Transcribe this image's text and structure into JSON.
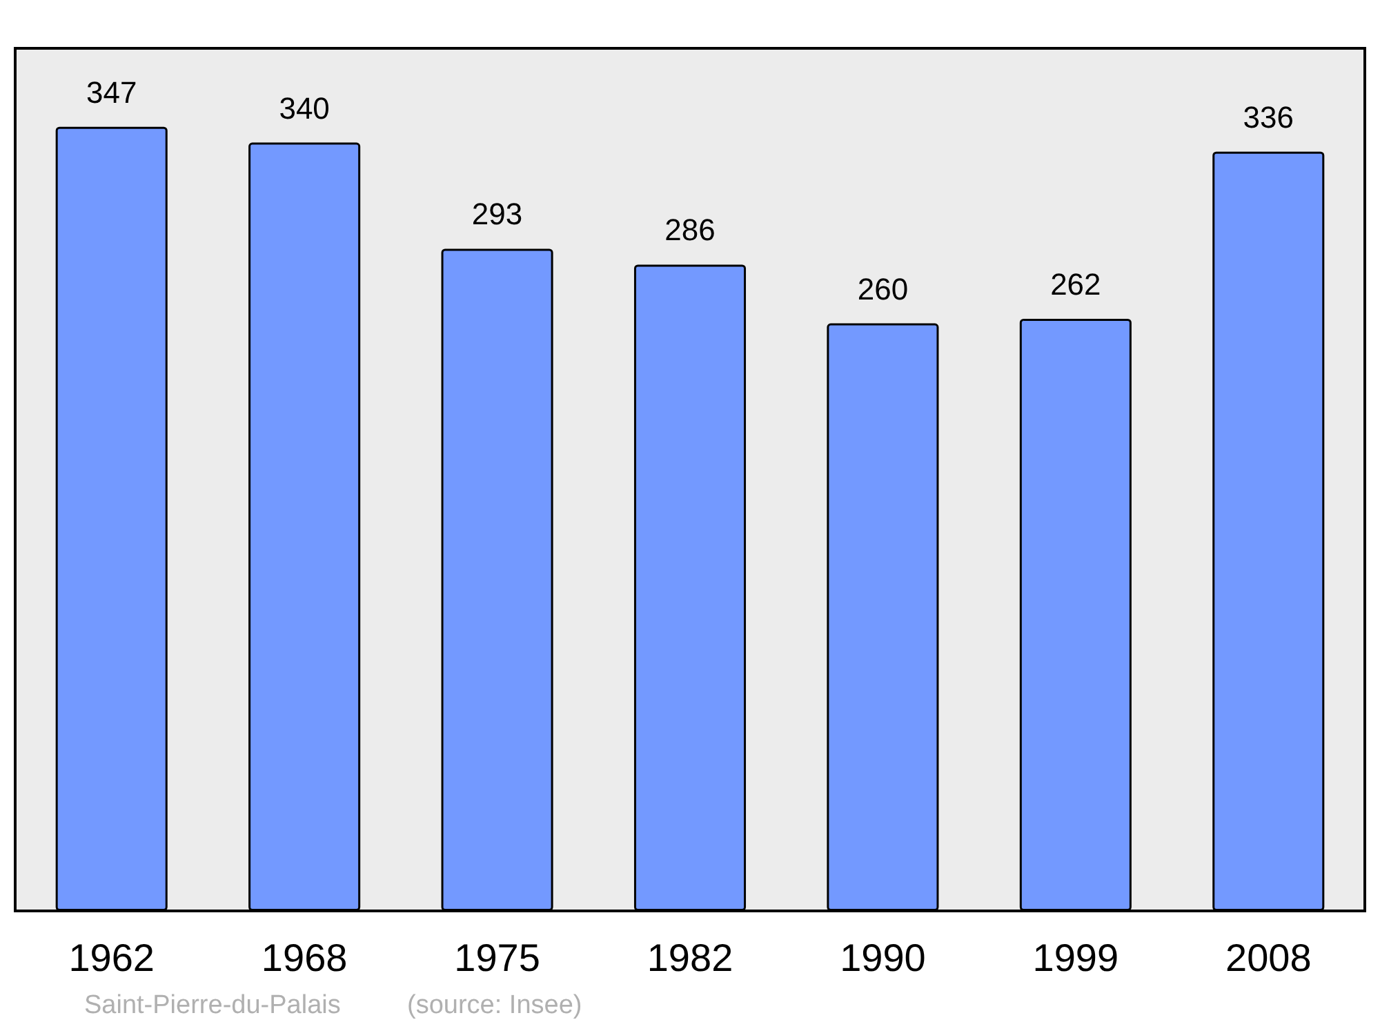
{
  "chart_data": {
    "type": "bar",
    "categories": [
      "1962",
      "1968",
      "1975",
      "1982",
      "1990",
      "1999",
      "2008"
    ],
    "values": [
      347,
      340,
      293,
      286,
      260,
      262,
      336
    ],
    "color": "#7399ff",
    "data_labels": true,
    "grid": false,
    "tick_labels": "x",
    "annotations": [
      "Saint-Pierre-du-Palais",
      "(source: Insee)"
    ]
  }
}
